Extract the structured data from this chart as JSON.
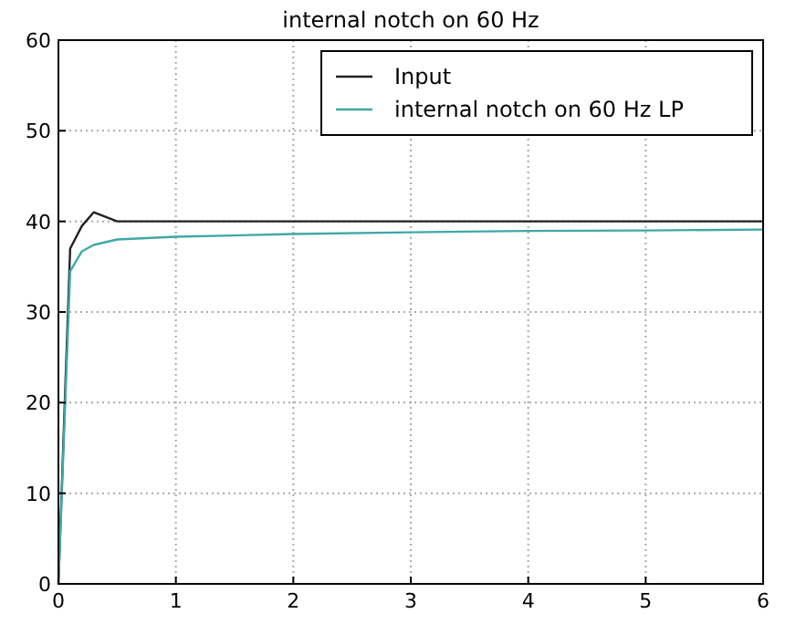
{
  "chart_data": {
    "type": "line",
    "title": "internal notch on 60 Hz",
    "xlim": [
      0,
      6
    ],
    "xticks": [
      0,
      1,
      2,
      3,
      4,
      5,
      6
    ],
    "ylim": [
      0,
      60
    ],
    "yticks": [
      0,
      10,
      20,
      30,
      40,
      50,
      60
    ],
    "grid": true,
    "legend": "top right",
    "series": [
      {
        "name": "Input",
        "color": "#222222",
        "x": [
          0,
          0.1,
          0.2,
          0.3,
          0.5,
          1,
          2,
          3,
          4,
          5,
          6
        ],
        "values": [
          0,
          37,
          39.5,
          41,
          40,
          40,
          40,
          40,
          40,
          40,
          40
        ]
      },
      {
        "name": "internal notch on 60 Hz LP",
        "color": "#3fa8a8",
        "x": [
          0,
          0.1,
          0.2,
          0.3,
          0.5,
          1,
          2,
          3,
          4,
          5,
          6
        ],
        "values": [
          0,
          34.5,
          36.7,
          37.4,
          38,
          38.3,
          38.6,
          38.8,
          38.95,
          39,
          39.1
        ]
      }
    ]
  }
}
